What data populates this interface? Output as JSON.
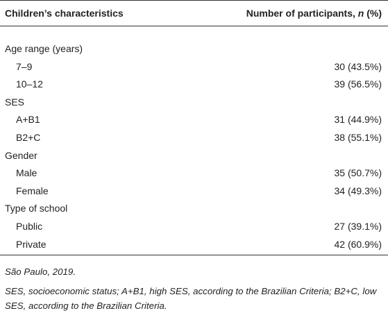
{
  "table": {
    "header": [
      "Children’s characteristics",
      {
        "before": "Number of participants, ",
        "italic": "n",
        "after": " (%)"
      }
    ],
    "sections": [
      {
        "label": "Age range (years)",
        "rows": [
          [
            "7–9",
            "30 (43.5%)"
          ],
          [
            "10–12",
            "39 (56.5%)"
          ]
        ]
      },
      {
        "label": "SES",
        "rows": [
          [
            "A+B1",
            "31 (44.9%)"
          ],
          [
            "B2+C",
            "38 (55.1%)"
          ]
        ]
      },
      {
        "label": "Gender",
        "rows": [
          [
            "Male",
            "35 (50.7%)"
          ],
          [
            "Female",
            "34 (49.3%)"
          ]
        ]
      },
      {
        "label": "Type of school",
        "rows": [
          [
            "Public",
            "27 (39.1%)"
          ],
          [
            "Private",
            "42 (60.9%)"
          ]
        ]
      }
    ]
  },
  "footnotes": [
    "São Paulo, 2019.",
    "SES, socioeconomic status; A+B1, high SES, according to the Brazilian Criteria; B2+C, low SES, according to the Brazilian Criteria."
  ]
}
